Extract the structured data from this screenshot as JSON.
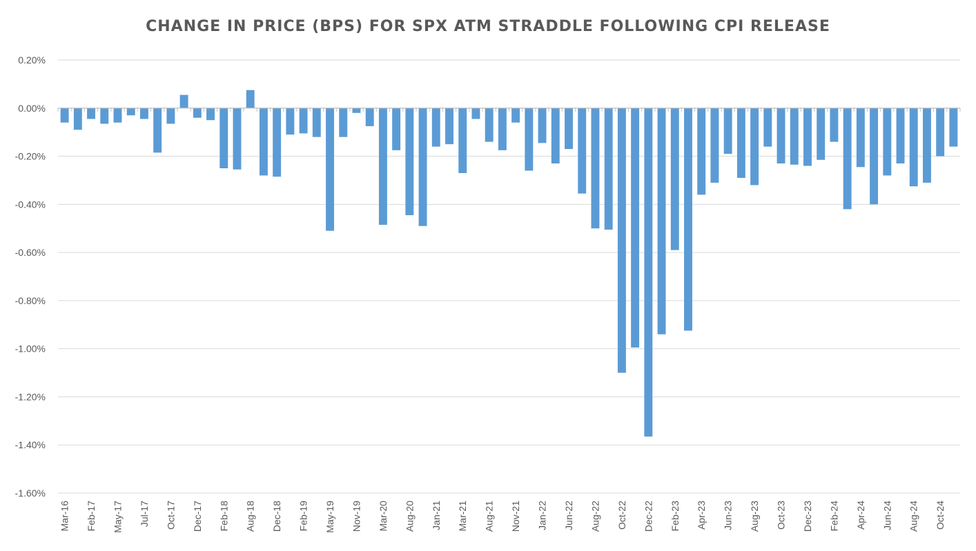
{
  "chart_data": {
    "type": "bar",
    "title": "CHANGE IN PRICE (BPS) FOR SPX ATM STRADDLE FOLLOWING CPI RELEASE",
    "xlabel": "",
    "ylabel": "",
    "ylim": [
      -1.6,
      0.2
    ],
    "yticks": [
      "0.20%",
      "0.00%",
      "-0.20%",
      "-0.40%",
      "-0.60%",
      "-0.80%",
      "-1.00%",
      "-1.20%",
      "-1.40%",
      "-1.60%"
    ],
    "ytick_values": [
      0.2,
      0.0,
      -0.2,
      -0.4,
      -0.6,
      -0.8,
      -1.0,
      -1.2,
      -1.4,
      -1.6
    ],
    "value_unit": "%",
    "grid": true,
    "legend": "none",
    "bar_color": "#5B9BD5",
    "x_tick_labels": [
      {
        "index": 0,
        "label": "Mar-16"
      },
      {
        "index": 2,
        "label": "Feb-17"
      },
      {
        "index": 4,
        "label": "May-17"
      },
      {
        "index": 6,
        "label": "Jul-17"
      },
      {
        "index": 8,
        "label": "Oct-17"
      },
      {
        "index": 10,
        "label": "Dec-17"
      },
      {
        "index": 12,
        "label": "Feb-18"
      },
      {
        "index": 14,
        "label": "Aug-18"
      },
      {
        "index": 16,
        "label": "Dec-18"
      },
      {
        "index": 18,
        "label": "Feb-19"
      },
      {
        "index": 20,
        "label": "May-19"
      },
      {
        "index": 22,
        "label": "Nov-19"
      },
      {
        "index": 24,
        "label": "Mar-20"
      },
      {
        "index": 26,
        "label": "Aug-20"
      },
      {
        "index": 28,
        "label": "Jan-21"
      },
      {
        "index": 30,
        "label": "Mar-21"
      },
      {
        "index": 32,
        "label": "Aug-21"
      },
      {
        "index": 34,
        "label": "Nov-21"
      },
      {
        "index": 36,
        "label": "Jan-22"
      },
      {
        "index": 38,
        "label": "Jun-22"
      },
      {
        "index": 40,
        "label": "Aug-22"
      },
      {
        "index": 42,
        "label": "Oct-22"
      },
      {
        "index": 44,
        "label": "Dec-22"
      },
      {
        "index": 46,
        "label": "Feb-23"
      },
      {
        "index": 48,
        "label": "Apr-23"
      },
      {
        "index": 50,
        "label": "Jun-23"
      },
      {
        "index": 52,
        "label": "Aug-23"
      },
      {
        "index": 54,
        "label": "Oct-23"
      },
      {
        "index": 56,
        "label": "Dec-23"
      },
      {
        "index": 58,
        "label": "Feb-24"
      },
      {
        "index": 60,
        "label": "Apr-24"
      },
      {
        "index": 62,
        "label": "Jun-24"
      },
      {
        "index": 64,
        "label": "Aug-24"
      },
      {
        "index": 66,
        "label": "Oct-24"
      }
    ],
    "values": [
      -0.06,
      -0.09,
      -0.045,
      -0.065,
      -0.06,
      -0.03,
      -0.045,
      -0.185,
      -0.065,
      0.055,
      -0.04,
      -0.05,
      -0.25,
      -0.255,
      0.075,
      -0.28,
      -0.285,
      -0.11,
      -0.105,
      -0.12,
      -0.51,
      -0.12,
      -0.02,
      -0.075,
      -0.485,
      -0.175,
      -0.445,
      -0.49,
      -0.16,
      -0.15,
      -0.27,
      -0.045,
      -0.14,
      -0.175,
      -0.06,
      -0.26,
      -0.145,
      -0.23,
      -0.17,
      -0.355,
      -0.5,
      -0.505,
      -1.1,
      -0.995,
      -1.365,
      -0.94,
      -0.59,
      -0.925,
      -0.36,
      -0.31,
      -0.19,
      -0.29,
      -0.32,
      -0.16,
      -0.23,
      -0.235,
      -0.24,
      -0.215,
      -0.14,
      -0.42,
      -0.245,
      -0.4,
      -0.28,
      -0.23,
      -0.325,
      -0.31,
      -0.2,
      -0.16
    ]
  }
}
